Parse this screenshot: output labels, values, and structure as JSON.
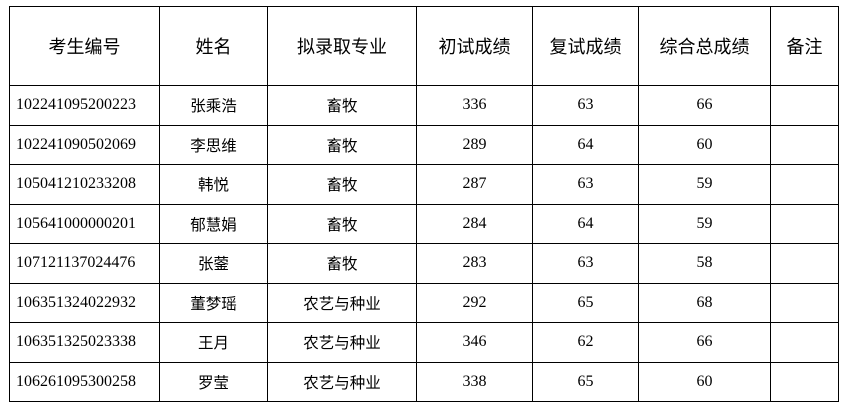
{
  "table": {
    "headers": [
      "考生编号",
      "姓名",
      "拟录取专业",
      "初试成绩",
      "复试成绩",
      "综合总成绩",
      "备注"
    ],
    "rows": [
      [
        "102241095200223",
        "张乘浩",
        "畜牧",
        "336",
        "63",
        "66",
        ""
      ],
      [
        "102241090502069",
        "李思维",
        "畜牧",
        "289",
        "64",
        "60",
        ""
      ],
      [
        "105041210233208",
        "韩悦",
        "畜牧",
        "287",
        "63",
        "59",
        ""
      ],
      [
        "105641000000201",
        "郁慧娟",
        "畜牧",
        "284",
        "64",
        "59",
        ""
      ],
      [
        "107121137024476",
        "张蓥",
        "畜牧",
        "283",
        "63",
        "58",
        ""
      ],
      [
        "106351324022932",
        "董梦瑶",
        "农艺与种业",
        "292",
        "65",
        "68",
        ""
      ],
      [
        "106351325023338",
        "王月",
        "农艺与种业",
        "346",
        "62",
        "66",
        ""
      ],
      [
        "106261095300258",
        "罗莹",
        "农艺与种业",
        "338",
        "65",
        "60",
        ""
      ]
    ]
  }
}
